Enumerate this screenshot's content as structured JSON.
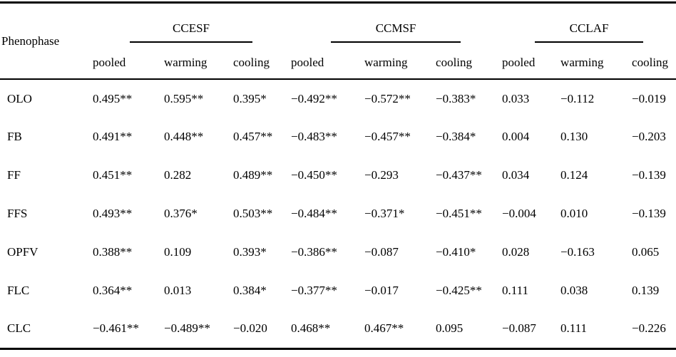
{
  "table": {
    "row_header_label": "Phenophase",
    "groups": [
      {
        "label": "CCESF"
      },
      {
        "label": "CCMSF"
      },
      {
        "label": "CCLAF"
      }
    ],
    "subheaders": [
      "pooled",
      "warming",
      "cooling"
    ],
    "rows": [
      {
        "label": "OLO",
        "values": [
          "0.495**",
          "0.595**",
          "0.395*",
          "−0.492**",
          "−0.572**",
          "−0.383*",
          "0.033",
          "−0.112",
          "−0.019"
        ]
      },
      {
        "label": "FB",
        "values": [
          "0.491**",
          "0.448**",
          "0.457**",
          "−0.483**",
          "−0.457**",
          "−0.384*",
          "0.004",
          "0.130",
          "−0.203"
        ]
      },
      {
        "label": "FF",
        "values": [
          "0.451**",
          "0.282",
          "0.489**",
          "−0.450**",
          "−0.293",
          "−0.437**",
          "0.034",
          "0.124",
          "−0.139"
        ]
      },
      {
        "label": "FFS",
        "values": [
          "0.493**",
          "0.376*",
          "0.503**",
          "−0.484**",
          "−0.371*",
          "−0.451**",
          "−0.004",
          "0.010",
          "−0.139"
        ]
      },
      {
        "label": "OPFV",
        "values": [
          "0.388**",
          "0.109",
          "0.393*",
          "−0.386**",
          "−0.087",
          "−0.410*",
          "0.028",
          "−0.163",
          "0.065"
        ]
      },
      {
        "label": "FLC",
        "values": [
          "0.364**",
          "0.013",
          "0.384*",
          "−0.377**",
          "−0.017",
          "−0.425**",
          "0.111",
          "0.038",
          "0.139"
        ]
      },
      {
        "label": "CLC",
        "values": [
          "−0.461**",
          "−0.489**",
          "−0.020",
          "0.468**",
          "0.467**",
          "0.095",
          "−0.087",
          "0.111",
          "−0.226"
        ]
      }
    ],
    "colors": {
      "text": "#000000",
      "rule": "#000000",
      "background": "#ffffff"
    }
  }
}
